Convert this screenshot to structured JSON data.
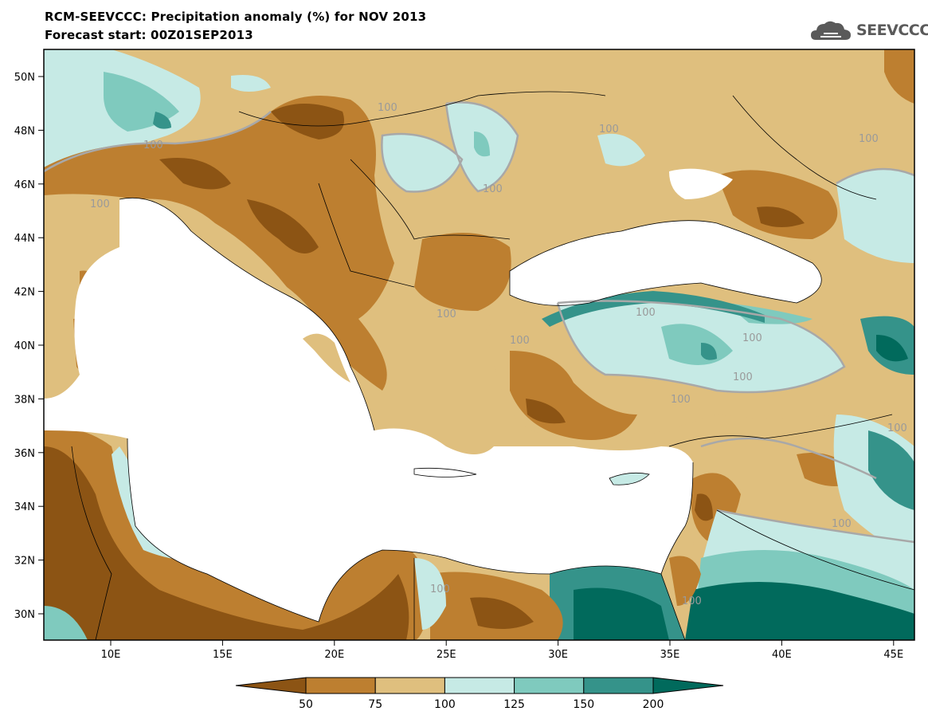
{
  "header": {
    "title": "RCM-SEEVCCC: Precipitation anomaly (%) for NOV 2013",
    "subtitle": "Forecast start: 00Z01SEP2013"
  },
  "logo": {
    "text": "SEEVCCC",
    "icon": "cloud-logo-icon"
  },
  "map": {
    "region": "Eastern Mediterranean / Balkans / Black Sea",
    "lon_ticks": [
      "10E",
      "15E",
      "20E",
      "25E",
      "30E",
      "35E",
      "40E",
      "45E"
    ],
    "lat_ticks": [
      "50N",
      "48N",
      "46N",
      "44N",
      "42N",
      "40N",
      "38N",
      "36N",
      "34N",
      "32N",
      "30N"
    ],
    "contour_label": "100",
    "colors": {
      "below_50": "#8c5414",
      "50_75": "#bd7f30",
      "75_100": "#dfbf7e",
      "100_125": "#c6eae5",
      "125_150": "#7fcabe",
      "150_200": "#35938a",
      "above_200": "#016a5c",
      "sea": "#ffffff",
      "contour_100": "#a8a8a8",
      "border": "#000000"
    }
  },
  "colorbar": {
    "ticks": [
      "50",
      "75",
      "100",
      "125",
      "150",
      "200"
    ],
    "colors": [
      "#8c5414",
      "#bd7f30",
      "#dfbf7e",
      "#c6eae5",
      "#7fcabe",
      "#35938a",
      "#016a5c"
    ]
  }
}
